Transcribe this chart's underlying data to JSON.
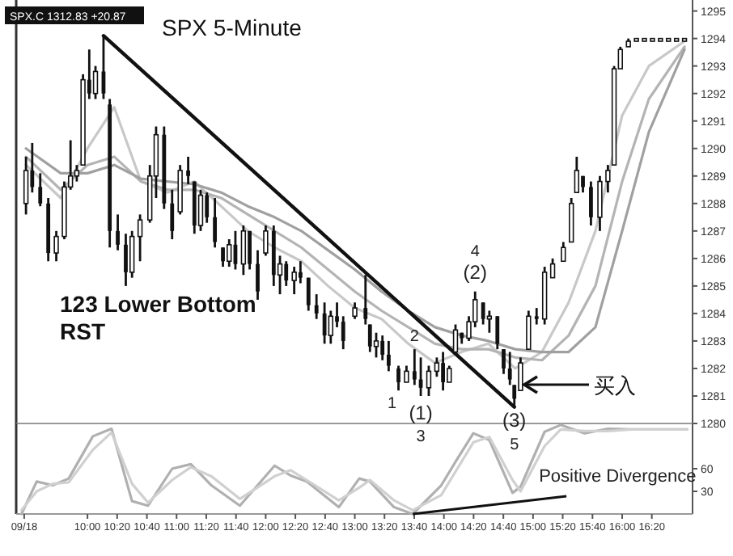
{
  "chart_data": [
    {
      "type": "candlestick",
      "title": "SPX 5-Minute",
      "x": [
        9.31,
        9.38,
        9.47,
        9.56,
        9.65,
        9.74,
        9.81,
        9.88,
        9.95,
        10.02,
        10.09,
        10.18,
        10.25,
        10.34,
        10.43,
        10.5,
        10.59,
        10.7,
        10.77,
        10.86,
        10.95,
        11.04,
        11.13,
        11.2,
        11.27,
        11.34,
        11.43,
        11.52,
        11.59,
        11.66,
        11.75,
        11.82,
        11.91,
        12.0,
        12.09,
        12.16,
        12.23,
        12.32,
        12.39,
        12.48,
        12.57,
        12.66,
        12.73,
        12.8,
        12.87,
        13.0,
        13.12,
        13.17,
        13.24,
        13.31,
        13.38,
        13.49,
        13.58,
        13.67,
        13.74,
        13.83,
        13.92,
        13.99,
        14.06,
        14.13,
        14.2,
        14.28,
        14.35,
        14.44,
        14.51,
        14.6,
        14.67,
        14.74,
        14.79,
        14.86,
        14.95,
        15.04,
        15.13,
        15.22,
        15.34,
        15.43,
        15.49,
        15.56,
        15.65,
        15.75,
        15.84,
        15.91,
        15.98,
        16.07,
        16.16,
        16.25,
        16.34,
        16.43,
        16.52,
        16.61,
        16.7
      ],
      "ohlc": [
        [
          1288.0,
          1289.7,
          1287.6,
          1289.2
        ],
        [
          1289.2,
          1290.2,
          1288.4,
          1288.6
        ],
        [
          1288.6,
          1289.1,
          1287.9,
          1288.0
        ],
        [
          1288.0,
          1288.2,
          1285.9,
          1286.2
        ],
        [
          1286.2,
          1287.0,
          1285.9,
          1286.8
        ],
        [
          1286.8,
          1288.8,
          1286.7,
          1288.6
        ],
        [
          1288.6,
          1290.3,
          1288.5,
          1289.0
        ],
        [
          1289.0,
          1289.4,
          1288.8,
          1289.2
        ],
        [
          1289.4,
          1292.7,
          1289.4,
          1292.5
        ],
        [
          1292.5,
          1293.6,
          1291.8,
          1292.0
        ],
        [
          1292.0,
          1293.0,
          1291.8,
          1292.8
        ],
        [
          1292.8,
          1294.1,
          1291.8,
          1292.0
        ],
        [
          1291.6,
          1291.8,
          1286.4,
          1287.0
        ],
        [
          1287.0,
          1287.6,
          1286.3,
          1286.5
        ],
        [
          1286.5,
          1286.9,
          1285.0,
          1285.5
        ],
        [
          1285.5,
          1287.0,
          1285.3,
          1286.8
        ],
        [
          1286.8,
          1287.6,
          1285.9,
          1287.4
        ],
        [
          1287.4,
          1289.4,
          1287.3,
          1289.0
        ],
        [
          1289.0,
          1290.8,
          1288.2,
          1290.5
        ],
        [
          1290.5,
          1290.8,
          1287.8,
          1288.0
        ],
        [
          1288.0,
          1288.5,
          1286.7,
          1287.0
        ],
        [
          1287.7,
          1289.4,
          1287.6,
          1289.2
        ],
        [
          1289.2,
          1289.7,
          1288.7,
          1289.0
        ],
        [
          1288.8,
          1288.8,
          1286.9,
          1287.2
        ],
        [
          1287.2,
          1288.5,
          1287.0,
          1288.3
        ],
        [
          1288.3,
          1288.4,
          1287.3,
          1287.5
        ],
        [
          1287.5,
          1288.2,
          1286.4,
          1286.6
        ],
        [
          1286.4,
          1286.4,
          1285.7,
          1285.9
        ],
        [
          1285.9,
          1286.7,
          1285.7,
          1286.5
        ],
        [
          1286.5,
          1287.0,
          1285.6,
          1285.8
        ],
        [
          1285.8,
          1287.2,
          1285.4,
          1287.0
        ],
        [
          1287.0,
          1287.0,
          1285.6,
          1285.8
        ],
        [
          1285.8,
          1286.3,
          1284.5,
          1284.8
        ],
        [
          1286.2,
          1287.2,
          1286.1,
          1287.0
        ],
        [
          1287.0,
          1287.2,
          1285.0,
          1285.4
        ],
        [
          1285.4,
          1286.1,
          1284.7,
          1285.8
        ],
        [
          1285.8,
          1285.9,
          1285.0,
          1285.2
        ],
        [
          1285.2,
          1285.7,
          1284.7,
          1285.5
        ],
        [
          1285.5,
          1285.9,
          1285.1,
          1285.3
        ],
        [
          1285.3,
          1285.3,
          1284.1,
          1284.3
        ],
        [
          1284.3,
          1284.7,
          1283.8,
          1284.0
        ],
        [
          1284.0,
          1284.4,
          1282.9,
          1283.2
        ],
        [
          1283.2,
          1284.1,
          1282.9,
          1283.9
        ],
        [
          1283.9,
          1284.4,
          1283.5,
          1283.7
        ],
        [
          1283.7,
          1283.9,
          1282.7,
          1283.0
        ],
        [
          1283.9,
          1284.4,
          1283.8,
          1284.2
        ],
        [
          1284.2,
          1285.4,
          1283.6,
          1283.8
        ],
        [
          1283.6,
          1283.6,
          1282.6,
          1282.8
        ],
        [
          1282.8,
          1283.3,
          1282.4,
          1283.0
        ],
        [
          1283.0,
          1283.2,
          1282.3,
          1282.5
        ],
        [
          1282.5,
          1283.0,
          1281.9,
          1282.1
        ],
        [
          1282.0,
          1282.1,
          1281.2,
          1281.5
        ],
        [
          1281.5,
          1282.1,
          1281.5,
          1281.9
        ],
        [
          1281.9,
          1282.7,
          1281.4,
          1281.6
        ],
        [
          1281.6,
          1282.4,
          1281.0,
          1281.3
        ],
        [
          1281.3,
          1282.1,
          1281.0,
          1281.9
        ],
        [
          1281.9,
          1282.4,
          1281.7,
          1282.2
        ],
        [
          1282.2,
          1282.6,
          1281.2,
          1281.5
        ],
        [
          1281.5,
          1282.1,
          1281.5,
          1282.0
        ],
        [
          1282.6,
          1283.6,
          1282.6,
          1283.4
        ],
        [
          1283.3,
          1283.3,
          1282.9,
          1283.1
        ],
        [
          1283.1,
          1283.9,
          1283.0,
          1283.7
        ],
        [
          1283.7,
          1284.8,
          1283.5,
          1284.5
        ],
        [
          1284.4,
          1284.4,
          1283.6,
          1283.8
        ],
        [
          1283.8,
          1284.1,
          1283.3,
          1283.9
        ],
        [
          1283.9,
          1283.9,
          1282.7,
          1282.9
        ],
        [
          1282.7,
          1282.7,
          1281.8,
          1282.0
        ],
        [
          1282.0,
          1282.6,
          1281.4,
          1281.6
        ],
        [
          1281.4,
          1281.4,
          1280.6,
          1280.9
        ],
        [
          1281.2,
          1282.4,
          1281.2,
          1282.2
        ],
        [
          1282.7,
          1284.1,
          1282.7,
          1283.9
        ],
        [
          1283.9,
          1284.2,
          1283.6,
          1283.8
        ],
        [
          1283.8,
          1285.7,
          1283.6,
          1285.5
        ],
        [
          1285.3,
          1286.0,
          1285.3,
          1285.8
        ],
        [
          1285.9,
          1286.6,
          1285.9,
          1286.4
        ],
        [
          1286.6,
          1288.2,
          1286.6,
          1288.0
        ],
        [
          1288.4,
          1289.7,
          1288.4,
          1289.2
        ],
        [
          1289.0,
          1289.0,
          1288.4,
          1288.6
        ],
        [
          1288.6,
          1288.8,
          1287.2,
          1287.5
        ],
        [
          1287.5,
          1289.0,
          1287.0,
          1288.8
        ],
        [
          1288.8,
          1289.4,
          1288.4,
          1289.2
        ],
        [
          1289.4,
          1293.0,
          1289.4,
          1292.9
        ],
        [
          1292.9,
          1293.7,
          1292.9,
          1293.6
        ],
        [
          1293.7,
          1294.0,
          1293.7,
          1293.9
        ],
        [
          1293.9,
          1294.0,
          1293.9,
          1294.0
        ],
        [
          1293.9,
          1294.0,
          1293.9,
          1294.0
        ],
        [
          1293.9,
          1294.0,
          1293.9,
          1294.0
        ],
        [
          1293.9,
          1294.0,
          1293.9,
          1294.0
        ],
        [
          1293.9,
          1294.0,
          1293.9,
          1294.0
        ],
        [
          1293.9,
          1294.0,
          1293.9,
          1294.0
        ],
        [
          1293.9,
          1294.0,
          1293.9,
          1294.0
        ]
      ],
      "series": [
        {
          "type": "line",
          "color": "#c8c8c8",
          "x": [
            9.31,
            9.7,
            10.0,
            10.3,
            10.6,
            10.9,
            11.2,
            11.5,
            11.8,
            12.1,
            12.4,
            12.7,
            13.0,
            13.3,
            13.6,
            13.9,
            14.2,
            14.5,
            14.8,
            15.1,
            15.4,
            15.7,
            16.0,
            16.3,
            16.7
          ],
          "values": [
            1289.4,
            1288.2,
            1290.0,
            1291.5,
            1288.8,
            1288.4,
            1288.8,
            1287.9,
            1287.0,
            1286.4,
            1285.9,
            1285.0,
            1284.2,
            1283.8,
            1282.9,
            1282.2,
            1282.6,
            1282.9,
            1282.0,
            1282.6,
            1284.4,
            1287.0,
            1291.2,
            1293.0,
            1293.9
          ]
        },
        {
          "type": "line",
          "color": "#b4b4b4",
          "x": [
            9.31,
            9.7,
            10.0,
            10.3,
            10.6,
            10.9,
            11.2,
            11.5,
            11.8,
            12.1,
            12.4,
            12.7,
            13.0,
            13.3,
            13.6,
            13.9,
            14.2,
            14.5,
            14.8,
            15.1,
            15.4,
            15.7,
            16.0,
            16.3,
            16.7
          ],
          "values": [
            1289.7,
            1288.5,
            1289.4,
            1289.7,
            1288.8,
            1288.5,
            1288.5,
            1288.2,
            1287.6,
            1287.0,
            1286.4,
            1285.6,
            1284.8,
            1284.1,
            1283.5,
            1282.9,
            1282.7,
            1282.7,
            1282.4,
            1282.3,
            1283.2,
            1285.0,
            1288.8,
            1291.8,
            1293.7
          ]
        },
        {
          "type": "line",
          "color": "#a0a0a0",
          "x": [
            9.31,
            9.7,
            10.0,
            10.3,
            10.6,
            10.9,
            11.2,
            11.5,
            11.8,
            12.1,
            12.4,
            12.7,
            13.0,
            13.3,
            13.6,
            13.9,
            14.2,
            14.5,
            14.8,
            15.1,
            15.4,
            15.7,
            16.0,
            16.3,
            16.7
          ],
          "values": [
            1290.0,
            1289.1,
            1289.1,
            1289.4,
            1288.9,
            1288.8,
            1288.7,
            1288.4,
            1287.9,
            1287.5,
            1287.0,
            1286.3,
            1285.6,
            1284.8,
            1284.1,
            1283.5,
            1283.2,
            1283.0,
            1282.7,
            1282.6,
            1282.6,
            1283.5,
            1287.0,
            1290.6,
            1293.6
          ]
        },
        {
          "type": "line",
          "color": "#111111",
          "x": [
            10.18,
            14.79
          ],
          "values": [
            1294.1,
            1280.6
          ]
        }
      ],
      "xlim": [
        9.2,
        16.79
      ],
      "ylim": [
        1280.0,
        1295.4
      ],
      "yticks": [
        1280,
        1281,
        1282,
        1283,
        1284,
        1285,
        1286,
        1287,
        1288,
        1289,
        1290,
        1291,
        1292,
        1293,
        1294,
        1295
      ],
      "tick_labels": "y",
      "annotations": [
        "SPX.C  1312.83  +20.87",
        "123 Lower Bottom\nRST",
        {
          "text": "1",
          "x": 13.49,
          "y": 1281.2
        },
        {
          "text": "2",
          "x": 13.67,
          "y": 1282.7
        },
        {
          "text": "(1)",
          "x": 13.74,
          "y": 1281.0
        },
        {
          "text": "3",
          "x": 13.74,
          "y": 1281.0
        },
        {
          "text": "(2)",
          "x": 14.35,
          "y": 1284.8
        },
        {
          "text": "4",
          "x": 14.35,
          "y": 1284.8
        },
        {
          "text": "(3)",
          "x": 14.79,
          "y": 1280.6
        },
        {
          "text": "5",
          "x": 14.79,
          "y": 1280.6
        },
        "买入"
      ]
    },
    {
      "type": "line",
      "series": [
        {
          "color": "#b0b0b0",
          "x": [
            9.26,
            9.43,
            9.61,
            9.79,
            10.06,
            10.27,
            10.5,
            10.68,
            10.95,
            11.16,
            11.39,
            11.71,
            12.1,
            12.28,
            12.46,
            12.82,
            13.05,
            13.17,
            13.44,
            13.65,
            13.97,
            14.15,
            14.33,
            14.51,
            14.77,
            14.86,
            15.13,
            15.31,
            15.58,
            15.84,
            16.11,
            16.73
          ],
          "values": [
            0,
            43,
            38,
            47,
            103,
            113,
            17,
            11,
            60,
            66,
            38,
            11,
            64,
            51,
            43,
            9,
            47,
            43,
            9,
            0,
            38,
            73,
            107,
            98,
            28,
            36,
            109,
            118,
            107,
            113,
            112,
            112
          ]
        },
        {
          "color": "#d0d0d0",
          "x": [
            9.26,
            9.43,
            9.61,
            9.79,
            10.06,
            10.27,
            10.5,
            10.68,
            10.95,
            11.16,
            11.39,
            11.71,
            12.1,
            12.28,
            12.46,
            12.82,
            13.05,
            13.17,
            13.44,
            13.65,
            13.97,
            14.15,
            14.33,
            14.51,
            14.77,
            14.86,
            15.13,
            15.31,
            15.58,
            15.84,
            16.11,
            16.73
          ],
          "values": [
            5,
            30,
            40,
            42,
            85,
            108,
            40,
            15,
            45,
            62,
            50,
            20,
            50,
            58,
            45,
            18,
            35,
            45,
            18,
            5,
            25,
            60,
            95,
            102,
            45,
            30,
            90,
            112,
            110,
            110,
            112,
            112
          ]
        }
      ],
      "xlim": [
        9.2,
        16.79
      ],
      "xticks": [
        {
          "value": 9.29,
          "label": "09/18"
        },
        {
          "value": 10.0,
          "label": "10:00"
        },
        {
          "value": 10.333,
          "label": "10:20"
        },
        {
          "value": 10.667,
          "label": "10:40"
        },
        {
          "value": 11.0,
          "label": "11:00"
        },
        {
          "value": 11.333,
          "label": "11:20"
        },
        {
          "value": 11.667,
          "label": "11:40"
        },
        {
          "value": 12.0,
          "label": "12:00"
        },
        {
          "value": 12.333,
          "label": "12:20"
        },
        {
          "value": 12.667,
          "label": "12:40"
        },
        {
          "value": 13.0,
          "label": "13:00"
        },
        {
          "value": 13.333,
          "label": "13:20"
        },
        {
          "value": 13.667,
          "label": "13:40"
        },
        {
          "value": 14.0,
          "label": "14:00"
        },
        {
          "value": 14.333,
          "label": "14:20"
        },
        {
          "value": 14.667,
          "label": "14:40"
        },
        {
          "value": 15.0,
          "label": "15:00"
        },
        {
          "value": 15.333,
          "label": "15:20"
        },
        {
          "value": 15.667,
          "label": "15:40"
        },
        {
          "value": 16.0,
          "label": "16:00"
        },
        {
          "value": 16.333,
          "label": "16:20"
        }
      ],
      "ylim": [
        0,
        120
      ],
      "yticks": [
        30,
        60
      ],
      "annotations": [
        {
          "text": "Positive Divergence",
          "x": 13.65,
          "y": 0
        }
      ]
    }
  ]
}
